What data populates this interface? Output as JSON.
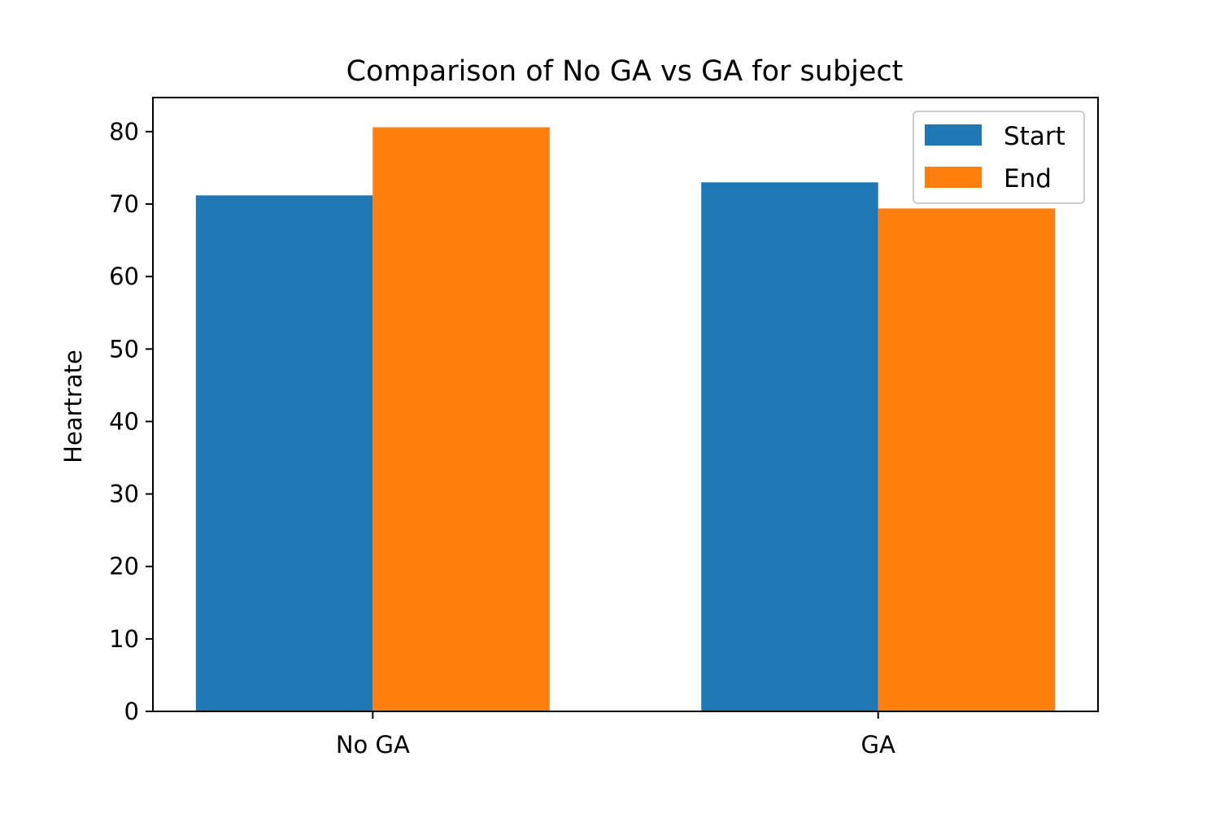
{
  "chart_data": {
    "type": "bar",
    "title": "Comparison of No GA vs GA for subject",
    "xlabel": "",
    "ylabel": "Heartrate",
    "categories": [
      "No GA",
      "GA"
    ],
    "series": [
      {
        "name": "Start",
        "color": "#1f77b4",
        "values": [
          71.2,
          73.0
        ]
      },
      {
        "name": "End",
        "color": "#ff7f0e",
        "values": [
          80.6,
          69.4
        ]
      }
    ],
    "ylim": [
      0,
      84.7
    ],
    "yticks": [
      "0",
      "10",
      "20",
      "30",
      "40",
      "50",
      "60",
      "70",
      "80"
    ],
    "grid": false,
    "legend_position": "top-right"
  }
}
